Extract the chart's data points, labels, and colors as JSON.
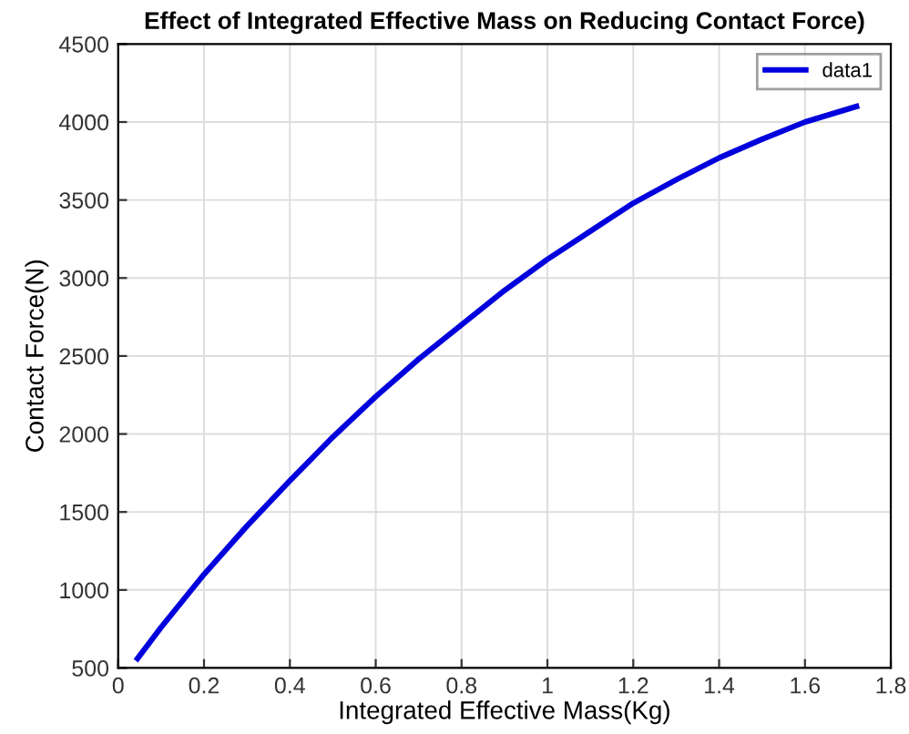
{
  "chart_data": {
    "type": "line",
    "title": "Effect of Integrated Effective Mass on Reducing Contact Force)",
    "xlabel": "Integrated Effective Mass(Kg)",
    "ylabel": "Contact Force(N)",
    "series": [
      {
        "name": "data1",
        "color": "#0000dd",
        "x": [
          0.045,
          0.1,
          0.2,
          0.3,
          0.4,
          0.5,
          0.6,
          0.7,
          0.8,
          0.9,
          1.0,
          1.1,
          1.2,
          1.3,
          1.4,
          1.5,
          1.6,
          1.72
        ],
        "values": [
          560,
          760,
          1100,
          1410,
          1700,
          1980,
          2240,
          2480,
          2700,
          2920,
          3120,
          3300,
          3480,
          3630,
          3770,
          3890,
          4000,
          4100
        ]
      }
    ],
    "xlim": [
      0,
      1.8
    ],
    "xticks": [
      0,
      0.2,
      0.4,
      0.6,
      0.8,
      1,
      1.2,
      1.4,
      1.6,
      1.8
    ],
    "ylim": [
      500,
      4500
    ],
    "yticks": [
      500,
      1000,
      1500,
      2000,
      2500,
      3000,
      3500,
      4000,
      4500
    ],
    "grid": true,
    "legend": "top right"
  }
}
